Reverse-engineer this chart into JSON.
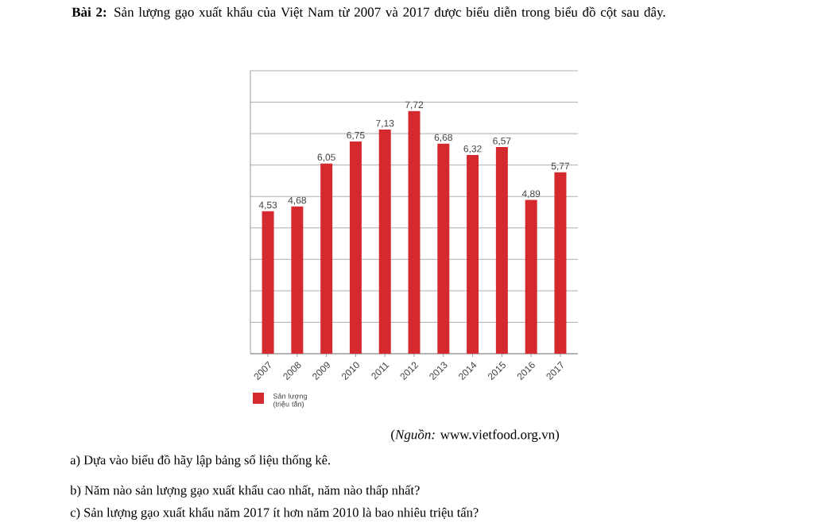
{
  "chart_data": {
    "type": "bar",
    "title": "**Bài 2:** Sản lượng gạo xuất khẩu của Việt Nam từ 2007 và 2017 được biểu diễn trong biểu đồ cột sau đây.",
    "categories": [
      "2007",
      "2008",
      "2009",
      "2010",
      "2011",
      "2012",
      "2013",
      "2014",
      "2015",
      "2016",
      "2017"
    ],
    "series": [
      {
        "name": "Sản lượng (triệu tấn)",
        "color": "#d42a2f",
        "values": [
          4.53,
          4.68,
          6.05,
          6.75,
          7.13,
          7.72,
          6.68,
          6.32,
          6.57,
          4.89,
          5.77
        ],
        "value_labels": [
          "4,53",
          "4,68",
          "6,05",
          "6,75",
          "7,13",
          "7,72",
          "6,68",
          "6,32",
          "6,57",
          "4,89",
          "5,77"
        ]
      }
    ],
    "ylim": [
      0,
      9
    ],
    "yticks": [
      {
        "value": 0,
        "label": null
      },
      {
        "value": 1,
        "label": null
      },
      {
        "value": 2,
        "label": null
      },
      {
        "value": 3,
        "label": null
      },
      {
        "value": 4,
        "label": null
      },
      {
        "value": 5,
        "label": null
      },
      {
        "value": 6,
        "label": null
      },
      {
        "value": 7,
        "label": null
      },
      {
        "value": 8,
        "label": null
      },
      {
        "value": 9,
        "label": null
      }
    ],
    "tick_labels": "x",
    "grid": "y",
    "legend": "bottom left",
    "annotations": [
      "(*Nguồn:* www.vietfood.org.vn)",
      "a) Dựa vào biểu đồ hãy lập bảng số liệu thống kê.",
      "b) Năm nào sản lượng gạo xuất khẩu cao nhất, năm nào thấp nhất?",
      "c) Sản lượng gạo xuất khẩu năm 2017 ít hơn năm 2010 là bao nhiêu triệu tấn?"
    ]
  }
}
